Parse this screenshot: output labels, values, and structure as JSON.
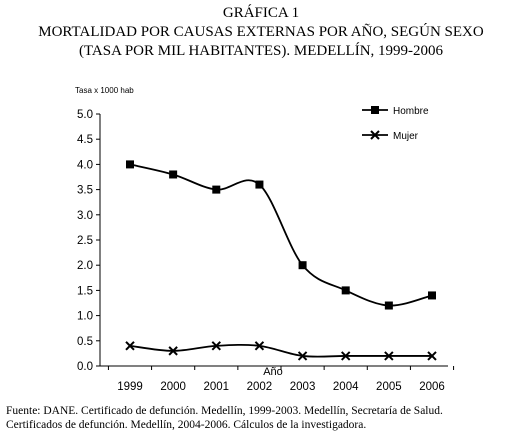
{
  "figure": {
    "label": "GRÁFICA 1",
    "title_line1": "MORTALIDAD POR CAUSAS EXTERNAS POR AÑO, SEGÚN SEXO",
    "title_line2": "(TASA POR MIL HABITANTES). MEDELLÍN, 1999-2006"
  },
  "source": {
    "line1": "Fuente: DANE. Certificado de defunción. Medellín, 1999-2003. Medellín, Secretaría de Salud.",
    "line2": "Certificados de defunción. Medellín, 2004-2006. Cálculos de la investigadora."
  },
  "chart_data": {
    "type": "line",
    "categories": [
      "1999",
      "2000",
      "2001",
      "2002",
      "2003",
      "2004",
      "2005",
      "2006"
    ],
    "series": [
      {
        "name": "Hombre",
        "marker": "square",
        "values": [
          4.0,
          3.8,
          3.5,
          3.6,
          2.0,
          1.5,
          1.2,
          1.4
        ]
      },
      {
        "name": "Mujer",
        "marker": "x",
        "values": [
          0.4,
          0.3,
          0.4,
          0.4,
          0.2,
          0.2,
          0.2,
          0.2
        ]
      }
    ],
    "ylabel": "Tasa x 1000 hab",
    "xlabel": "Año",
    "ylim": [
      0,
      5
    ],
    "yticks": [
      "0.0",
      "0.5",
      "1.0",
      "1.5",
      "2.0",
      "2.5",
      "3.0",
      "3.5",
      "4.0",
      "4.5",
      "5.0"
    ],
    "grid": false,
    "legend_position": "top-right",
    "line_color": "#000000"
  }
}
